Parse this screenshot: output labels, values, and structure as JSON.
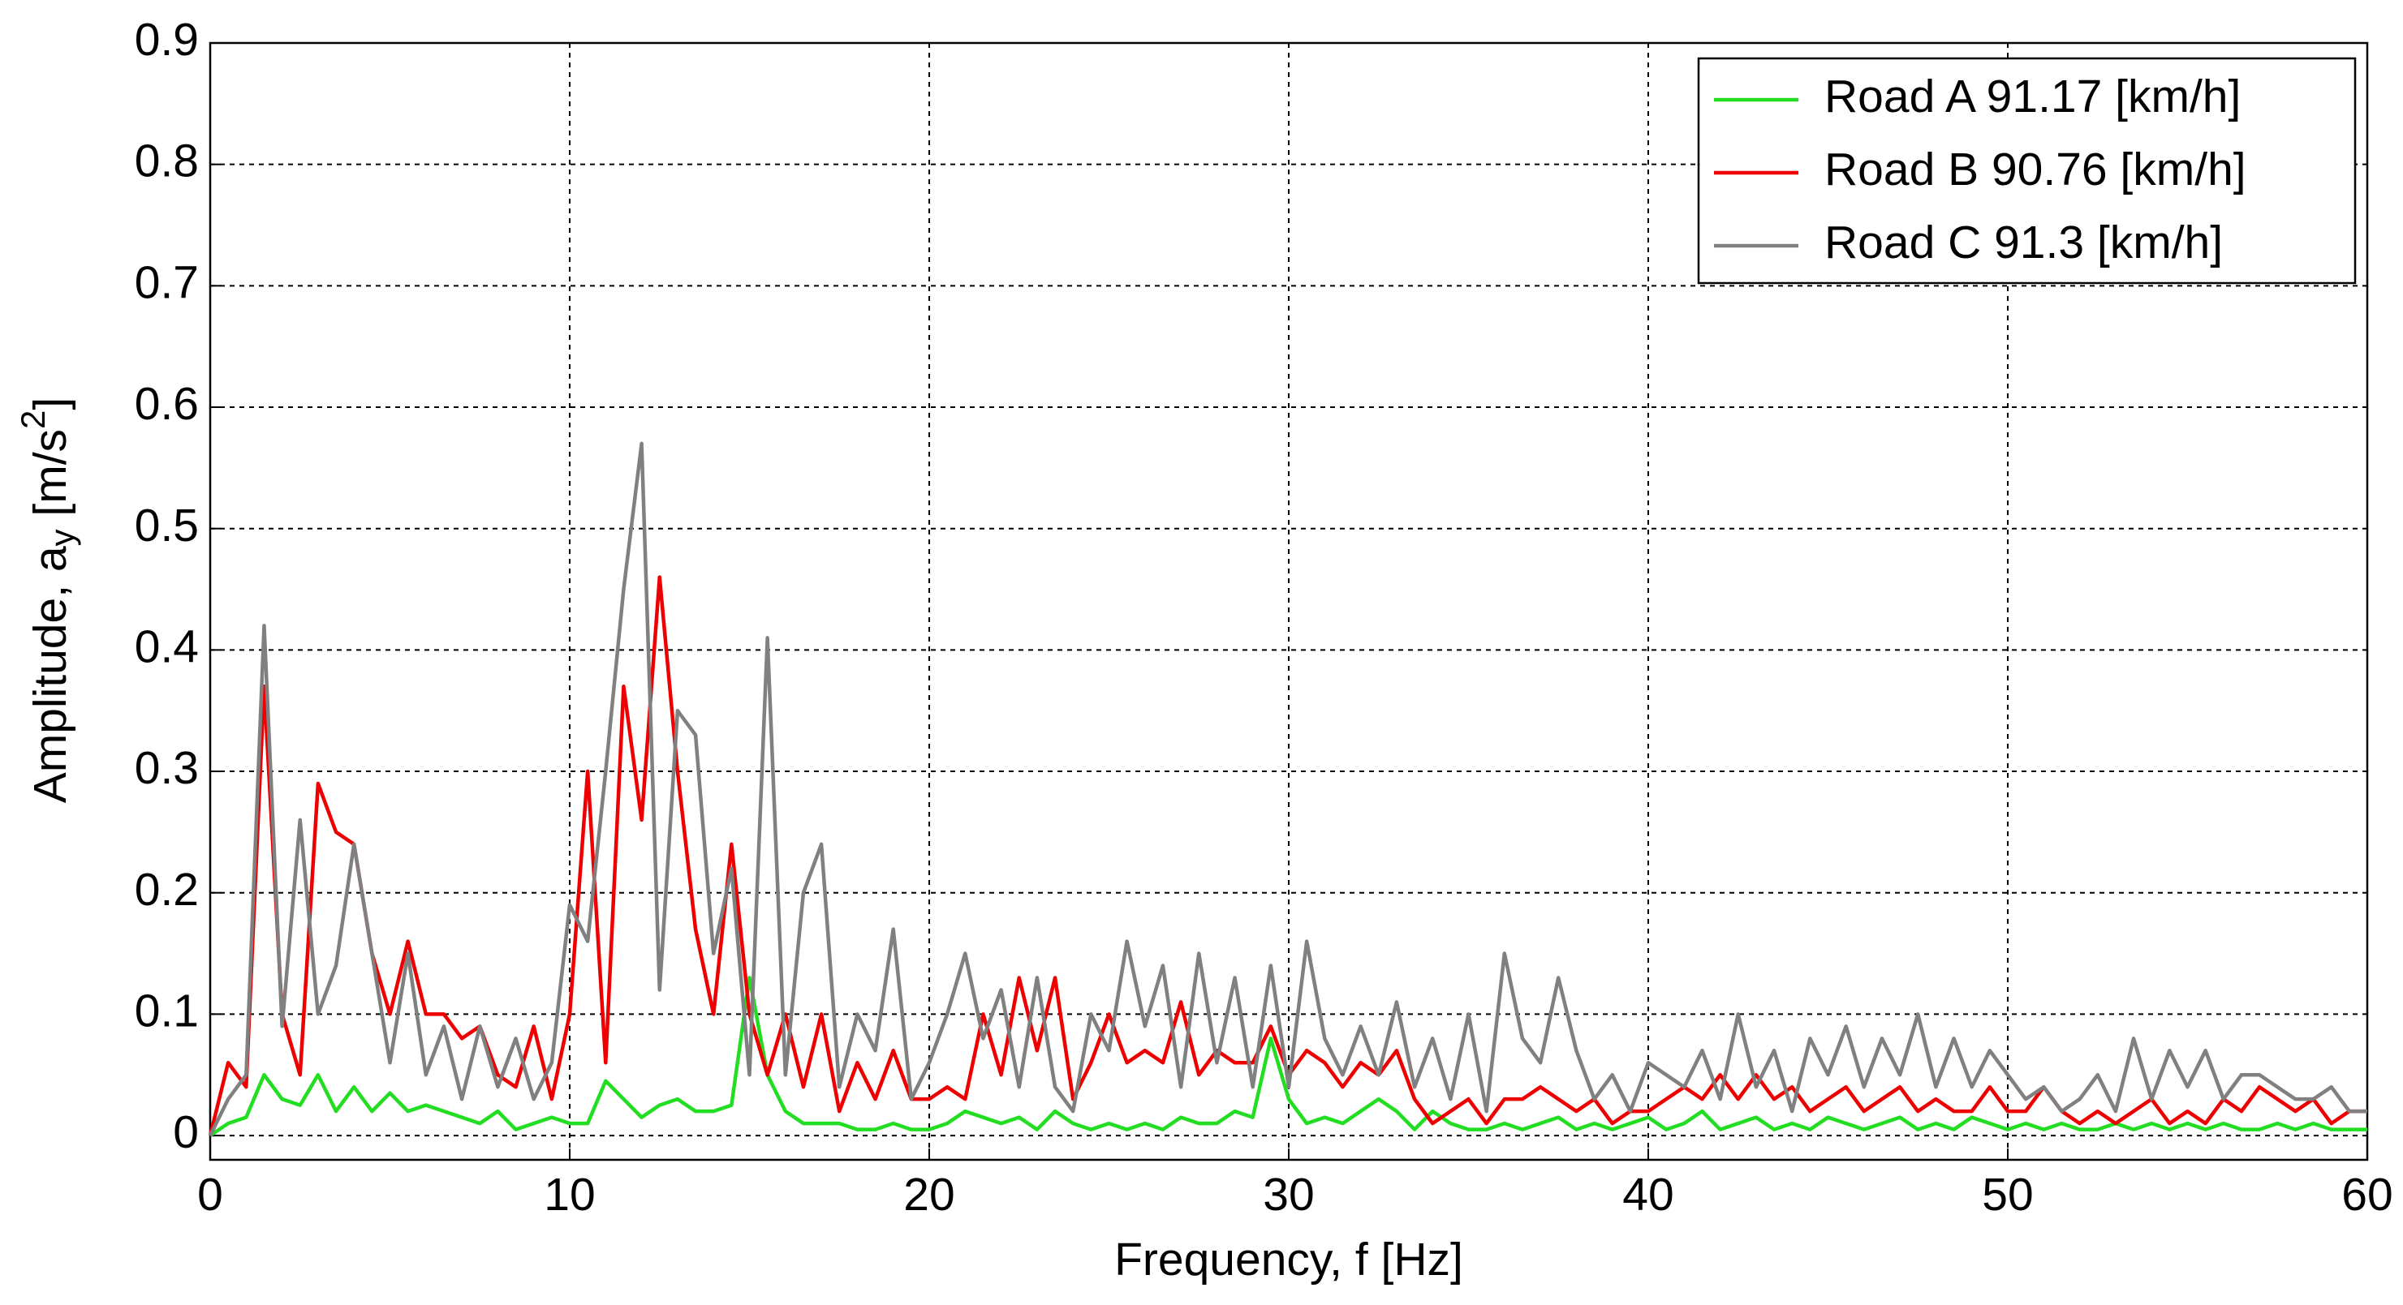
{
  "chart_data": {
    "type": "line",
    "x_label": "Frequency, f [Hz]",
    "y_label": {
      "text": "Amplitude, a",
      "sub": "y",
      "text2": " [m/s",
      "sup": "2",
      "text3": "]"
    },
    "xlim": [
      0,
      60
    ],
    "ylim": [
      -0.02,
      0.9
    ],
    "xticks": [
      0,
      10,
      20,
      30,
      40,
      50,
      60
    ],
    "yticks": [
      0,
      0.1,
      0.2,
      0.3,
      0.4,
      0.5,
      0.6,
      0.7,
      0.8,
      0.9
    ],
    "grid": true,
    "legend": "upper right",
    "x": [
      0,
      0.5,
      1,
      1.5,
      2,
      2.5,
      3,
      3.5,
      4,
      4.5,
      5,
      5.5,
      6,
      6.5,
      7,
      7.5,
      8,
      8.5,
      9,
      9.5,
      10,
      10.5,
      11,
      11.5,
      12,
      12.5,
      13,
      13.5,
      14,
      14.5,
      15,
      15.5,
      16,
      16.5,
      17,
      17.5,
      18,
      18.5,
      19,
      19.5,
      20,
      20.5,
      21,
      21.5,
      22,
      22.5,
      23,
      23.5,
      24,
      24.5,
      25,
      25.5,
      26,
      26.5,
      27,
      27.5,
      28,
      28.5,
      29,
      29.5,
      30,
      30.5,
      31,
      31.5,
      32,
      32.5,
      33,
      33.5,
      34,
      34.5,
      35,
      35.5,
      36,
      36.5,
      37,
      37.5,
      38,
      38.5,
      39,
      39.5,
      40,
      40.5,
      41,
      41.5,
      42,
      42.5,
      43,
      43.5,
      44,
      44.5,
      45,
      45.5,
      46,
      46.5,
      47,
      47.5,
      48,
      48.5,
      49,
      49.5,
      50,
      50.5,
      51,
      51.5,
      52,
      52.5,
      53,
      53.5,
      54,
      54.5,
      55,
      55.5,
      56,
      56.5,
      57,
      57.5,
      58,
      58.5,
      59,
      59.5,
      60
    ],
    "series": [
      {
        "name": "Road A 91.17 [km/h]",
        "color": "#22dd22",
        "values": [
          0,
          0.01,
          0.015,
          0.05,
          0.03,
          0.025,
          0.05,
          0.02,
          0.04,
          0.02,
          0.035,
          0.02,
          0.025,
          0.02,
          0.015,
          0.01,
          0.02,
          0.005,
          0.01,
          0.015,
          0.01,
          0.01,
          0.045,
          0.03,
          0.015,
          0.025,
          0.03,
          0.02,
          0.02,
          0.025,
          0.13,
          0.05,
          0.02,
          0.01,
          0.01,
          0.01,
          0.005,
          0.005,
          0.01,
          0.005,
          0.005,
          0.01,
          0.02,
          0.015,
          0.01,
          0.015,
          0.005,
          0.02,
          0.01,
          0.005,
          0.01,
          0.005,
          0.01,
          0.005,
          0.015,
          0.01,
          0.01,
          0.02,
          0.015,
          0.08,
          0.03,
          0.01,
          0.015,
          0.01,
          0.02,
          0.03,
          0.02,
          0.005,
          0.02,
          0.01,
          0.005,
          0.005,
          0.01,
          0.005,
          0.01,
          0.015,
          0.005,
          0.01,
          0.005,
          0.01,
          0.015,
          0.005,
          0.01,
          0.02,
          0.005,
          0.01,
          0.015,
          0.005,
          0.01,
          0.005,
          0.015,
          0.01,
          0.005,
          0.01,
          0.015,
          0.005,
          0.01,
          0.005,
          0.015,
          0.01,
          0.005,
          0.01,
          0.005,
          0.01,
          0.005,
          0.005,
          0.01,
          0.005,
          0.01,
          0.005,
          0.01,
          0.005,
          0.01,
          0.005,
          0.005,
          0.01,
          0.005,
          0.01,
          0.005,
          0.005,
          0.005
        ]
      },
      {
        "name": "Road B 90.76 [km/h]",
        "color": "#ee0000",
        "values": [
          0,
          0.06,
          0.04,
          0.37,
          0.1,
          0.05,
          0.29,
          0.25,
          0.24,
          0.15,
          0.1,
          0.16,
          0.1,
          0.1,
          0.08,
          0.09,
          0.05,
          0.04,
          0.09,
          0.03,
          0.1,
          0.3,
          0.06,
          0.37,
          0.26,
          0.46,
          0.3,
          0.17,
          0.1,
          0.24,
          0.1,
          0.05,
          0.1,
          0.04,
          0.1,
          0.02,
          0.06,
          0.03,
          0.07,
          0.03,
          0.03,
          0.04,
          0.03,
          0.1,
          0.05,
          0.13,
          0.07,
          0.13,
          0.03,
          0.06,
          0.1,
          0.06,
          0.07,
          0.06,
          0.11,
          0.05,
          0.07,
          0.06,
          0.06,
          0.09,
          0.05,
          0.07,
          0.06,
          0.04,
          0.06,
          0.05,
          0.07,
          0.03,
          0.01,
          0.02,
          0.03,
          0.01,
          0.03,
          0.03,
          0.04,
          0.03,
          0.02,
          0.03,
          0.01,
          0.02,
          0.02,
          0.03,
          0.04,
          0.03,
          0.05,
          0.03,
          0.05,
          0.03,
          0.04,
          0.02,
          0.03,
          0.04,
          0.02,
          0.03,
          0.04,
          0.02,
          0.03,
          0.02,
          0.02,
          0.04,
          0.02,
          0.02,
          0.04,
          0.02,
          0.01,
          0.02,
          0.01,
          0.02,
          0.03,
          0.01,
          0.02,
          0.01,
          0.03,
          0.02,
          0.04,
          0.03,
          0.02,
          0.03,
          0.01,
          0.02,
          0.02
        ]
      },
      {
        "name": "Road C 91.3 [km/h]",
        "color": "#808080",
        "values": [
          0,
          0.03,
          0.05,
          0.42,
          0.09,
          0.26,
          0.1,
          0.14,
          0.24,
          0.15,
          0.06,
          0.15,
          0.05,
          0.09,
          0.03,
          0.09,
          0.04,
          0.08,
          0.03,
          0.06,
          0.19,
          0.16,
          0.3,
          0.45,
          0.57,
          0.12,
          0.35,
          0.33,
          0.15,
          0.22,
          0.05,
          0.41,
          0.05,
          0.2,
          0.24,
          0.04,
          0.1,
          0.07,
          0.17,
          0.03,
          0.06,
          0.1,
          0.15,
          0.08,
          0.12,
          0.04,
          0.13,
          0.04,
          0.02,
          0.1,
          0.07,
          0.16,
          0.09,
          0.14,
          0.04,
          0.15,
          0.06,
          0.13,
          0.04,
          0.14,
          0.04,
          0.16,
          0.08,
          0.05,
          0.09,
          0.05,
          0.11,
          0.04,
          0.08,
          0.03,
          0.1,
          0.02,
          0.15,
          0.08,
          0.06,
          0.13,
          0.07,
          0.03,
          0.05,
          0.02,
          0.06,
          0.05,
          0.04,
          0.07,
          0.03,
          0.1,
          0.04,
          0.07,
          0.02,
          0.08,
          0.05,
          0.09,
          0.04,
          0.08,
          0.05,
          0.1,
          0.04,
          0.08,
          0.04,
          0.07,
          0.05,
          0.03,
          0.04,
          0.02,
          0.03,
          0.05,
          0.02,
          0.08,
          0.03,
          0.07,
          0.04,
          0.07,
          0.03,
          0.05,
          0.05,
          0.04,
          0.03,
          0.03,
          0.04,
          0.02,
          0.02
        ]
      }
    ]
  }
}
